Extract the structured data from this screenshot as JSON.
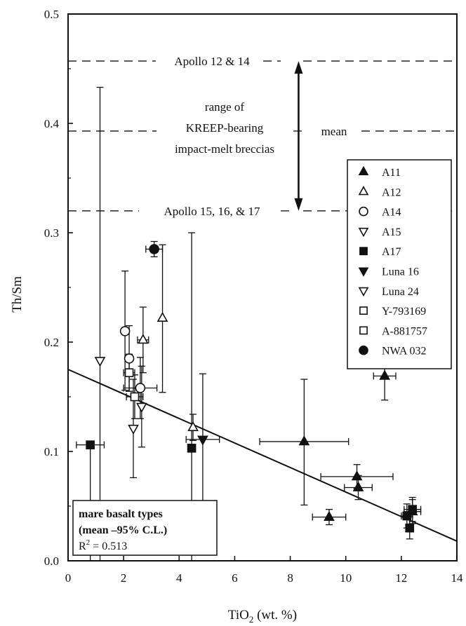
{
  "chart_data": {
    "type": "scatter",
    "xlabel": "TiO",
    "xlabel_sub": "2",
    "xlabel_tail": " (wt. %)",
    "ylabel": "Th/Sm",
    "xlim": [
      0,
      14
    ],
    "ylim": [
      0,
      0.5
    ],
    "x_ticks": [
      0,
      2,
      4,
      6,
      8,
      10,
      12,
      14
    ],
    "x_tick_labels": [
      "0",
      "2",
      "4",
      "6",
      "8",
      "10",
      "12",
      "14"
    ],
    "y_ticks": [
      0,
      0.1,
      0.2,
      0.3,
      0.4,
      0.5
    ],
    "y_tick_labels": [
      "0.0",
      "0.1",
      "0.2",
      "0.3",
      "0.4",
      "0.5"
    ],
    "grid": false,
    "reference_lines": [
      {
        "y": 0.457,
        "label": "Apollo 12 & 14"
      },
      {
        "y": 0.393,
        "label": "mean"
      },
      {
        "y": 0.32,
        "label": "Apollo 15, 16, & 17"
      }
    ],
    "range_annotation": {
      "x": 8.3,
      "y_range": [
        0.32,
        0.457
      ],
      "lines": [
        "range of",
        "KREEP-bearing",
        "impact-melt breccias"
      ]
    },
    "legend": {
      "position": "right",
      "entries": [
        {
          "label": "A11",
          "marker": "triangle-up",
          "fill": "filled"
        },
        {
          "label": "A12",
          "marker": "triangle-up",
          "fill": "open"
        },
        {
          "label": "A14",
          "marker": "circle",
          "fill": "open"
        },
        {
          "label": "A15",
          "marker": "triangle-down",
          "fill": "open"
        },
        {
          "label": "A17",
          "marker": "square",
          "fill": "filled"
        },
        {
          "label": "Luna 16",
          "marker": "triangle-down",
          "fill": "filled"
        },
        {
          "label": "Luna 24",
          "marker": "triangle-down",
          "fill": "open"
        },
        {
          "label": "Y-793169",
          "marker": "square",
          "fill": "open"
        },
        {
          "label": "A-881757",
          "marker": "square",
          "fill": "open"
        },
        {
          "label": "NWA 032",
          "marker": "circle",
          "fill": "filled"
        }
      ]
    },
    "points": [
      {
        "series": "A11",
        "x": 11.4,
        "y": 0.169,
        "xerr": 0.4,
        "yerr": [
          0.147,
          0.188
        ]
      },
      {
        "series": "A11",
        "x": 8.5,
        "y": 0.109,
        "xerr": 1.6,
        "yerr": [
          0.051,
          0.166
        ]
      },
      {
        "series": "A11",
        "x": 10.4,
        "y": 0.077,
        "xerr": 1.3,
        "yerr": [
          0.066,
          0.088
        ]
      },
      {
        "series": "A11",
        "x": 10.45,
        "y": 0.067,
        "xerr": 0.5,
        "yerr": [
          0.056,
          0.078
        ]
      },
      {
        "series": "A11",
        "x": 9.4,
        "y": 0.04,
        "xerr": 0.6,
        "yerr": [
          0.033,
          0.047
        ]
      },
      {
        "series": "A11",
        "x": 12.4,
        "y": 0.045,
        "xerr": 0.3,
        "yerr": [
          0.034,
          0.056
        ]
      },
      {
        "series": "A12",
        "x": 3.4,
        "y": 0.222,
        "xerr": 0,
        "yerr": [
          0.154,
          0.289
        ]
      },
      {
        "series": "A12",
        "x": 2.7,
        "y": 0.202,
        "xerr": 0.2,
        "yerr": [
          0.172,
          0.232
        ]
      },
      {
        "series": "A12",
        "x": 4.5,
        "y": 0.122,
        "xerr": 0,
        "yerr": [
          0.11,
          0.134
        ]
      },
      {
        "series": "A14",
        "x": 2.05,
        "y": 0.21,
        "xerr": 0,
        "yerr": [
          0.156,
          0.265
        ]
      },
      {
        "series": "A14",
        "x": 2.2,
        "y": 0.185,
        "xerr": 0.1,
        "yerr": [
          0.155,
          0.215
        ]
      },
      {
        "series": "A14",
        "x": 2.6,
        "y": 0.158,
        "xerr": 0.6,
        "yerr": [
          0.13,
          0.186
        ]
      },
      {
        "series": "A15",
        "x": 2.35,
        "y": 0.121,
        "xerr": 0,
        "yerr": [
          0.076,
          0.166
        ]
      },
      {
        "series": "A15",
        "x": 2.65,
        "y": 0.141,
        "xerr": 0,
        "yerr": [
          0.104,
          0.178
        ]
      },
      {
        "series": "A17",
        "x": 0.8,
        "y": 0.106,
        "xerr": 0.5,
        "yerr": [
          0.0,
          0.106
        ]
      },
      {
        "series": "A17",
        "x": 4.45,
        "y": 0.103,
        "xerr": 0,
        "yerr": [
          0.0,
          0.3
        ]
      },
      {
        "series": "A17",
        "x": 12.2,
        "y": 0.041,
        "xerr": 0.2,
        "yerr": [
          0.03,
          0.052
        ]
      },
      {
        "series": "A17",
        "x": 12.3,
        "y": 0.03,
        "xerr": 0,
        "yerr": [
          0.02,
          0.04
        ]
      },
      {
        "series": "A17",
        "x": 12.4,
        "y": 0.047,
        "xerr": 0.3,
        "yerr": [
          0.036,
          0.058
        ]
      },
      {
        "series": "Luna 16",
        "x": 4.85,
        "y": 0.111,
        "xerr": 0.6,
        "yerr": [
          0.05,
          0.171
        ]
      },
      {
        "series": "Luna 24",
        "x": 1.15,
        "y": 0.183,
        "xerr": 0,
        "yerr": [
          0.0,
          0.433
        ]
      },
      {
        "series": "Y-793169",
        "x": 2.2,
        "y": 0.172,
        "xerr": 0.2,
        "yerr": [
          0.155,
          0.189
        ]
      },
      {
        "series": "A-881757",
        "x": 2.4,
        "y": 0.15,
        "xerr": 0.3,
        "yerr": [
          0.13,
          0.17
        ]
      },
      {
        "series": "NWA 032",
        "x": 3.1,
        "y": 0.285,
        "xerr": 0.3,
        "yerr": [
          0.278,
          0.292
        ]
      }
    ],
    "regression": {
      "x": [
        0,
        14
      ],
      "y": [
        0.175,
        0.018
      ]
    },
    "note": {
      "lines": [
        "mare basalt types",
        "(mean –95% C.L.)"
      ],
      "r2_prefix": "R",
      "r2_sup": "2",
      "r2_value": " = 0.513"
    }
  }
}
